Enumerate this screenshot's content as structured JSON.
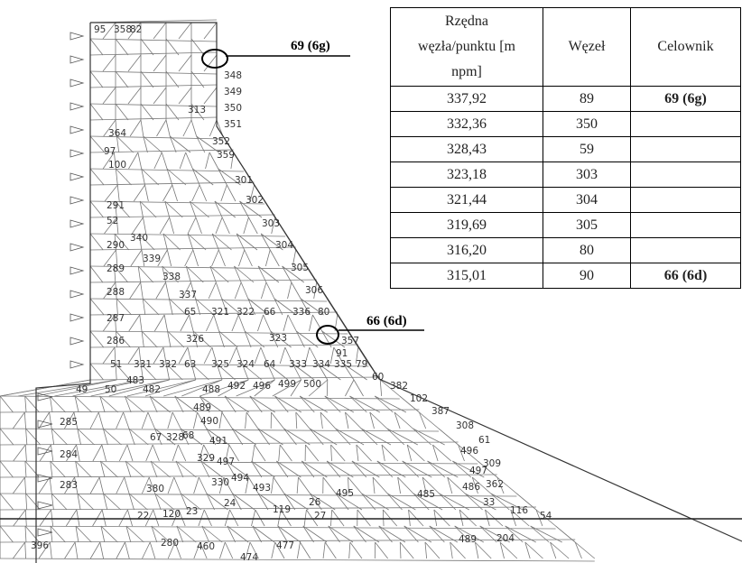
{
  "callouts": [
    "69 (6g)",
    "66 (6d)"
  ],
  "mesh": {
    "node_labels": [
      "95",
      "358",
      "82",
      "348",
      "349",
      "350",
      "313",
      "351",
      "352",
      "359",
      "301",
      "302",
      "303",
      "304",
      "305",
      "306",
      "336",
      "80",
      "357",
      "91",
      "60",
      "382",
      "102",
      "387",
      "308",
      "61",
      "496",
      "309",
      "497",
      "362",
      "486",
      "33",
      "116",
      "54",
      "364",
      "97",
      "100",
      "291",
      "52",
      "290",
      "340",
      "339",
      "289",
      "338",
      "288",
      "337",
      "287",
      "65",
      "321",
      "322",
      "66",
      "286",
      "326",
      "323",
      "51",
      "331",
      "332",
      "63",
      "325",
      "324",
      "64",
      "333",
      "334",
      "335",
      "79",
      "483",
      "482",
      "488",
      "492",
      "496",
      "499",
      "500",
      "50",
      "49",
      "489",
      "490",
      "285",
      "67",
      "328",
      "68",
      "491",
      "284",
      "329",
      "497",
      "283",
      "380",
      "330",
      "494",
      "493",
      "24",
      "119",
      "26",
      "495",
      "22",
      "120",
      "23",
      "27",
      "485",
      "280",
      "460",
      "477",
      "474",
      "204",
      "489",
      "396"
    ]
  },
  "table": {
    "header": [
      "Rzędna węzła/punktu [m npm]",
      "Węzeł",
      "Celownik"
    ],
    "rows": [
      {
        "elevation": "337,92",
        "node": "89",
        "target": "69 (6g)"
      },
      {
        "elevation": "332,36",
        "node": "350"
      },
      {
        "elevation": "328,43",
        "node": "59"
      },
      {
        "elevation": "323,18",
        "node": "303"
      },
      {
        "elevation": "321,44",
        "node": "304"
      },
      {
        "elevation": "319,69",
        "node": "305"
      },
      {
        "elevation": "316,20",
        "node": "80"
      },
      {
        "elevation": "315,01",
        "node": "90",
        "target": "66 (6d)"
      }
    ]
  }
}
